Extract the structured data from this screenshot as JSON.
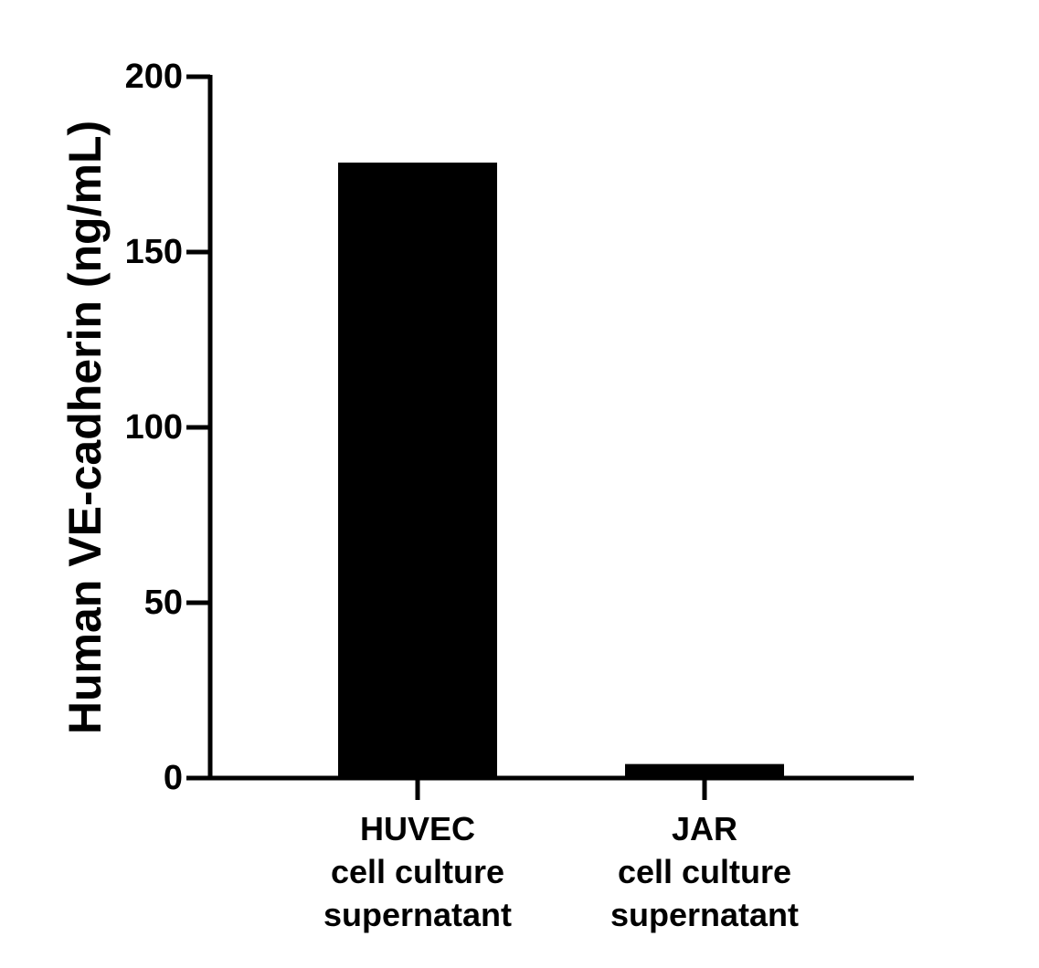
{
  "chart_data": {
    "type": "bar",
    "categories": [
      [
        "HUVEC",
        "cell culture",
        "supernatant"
      ],
      [
        "JAR",
        "cell culture",
        "supernatant"
      ]
    ],
    "values": [
      175.5,
      4
    ],
    "ylabel": "Human VE-cadherin (ng/mL)",
    "ylim": [
      0,
      200
    ],
    "yticks": [
      0,
      50,
      100,
      150,
      200
    ],
    "grid": false,
    "bar_color": "#000000"
  }
}
